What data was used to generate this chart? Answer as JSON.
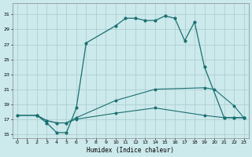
{
  "xlabel": "Humidex (Indice chaleur)",
  "bg_color": "#cce9ec",
  "grid_color": "#aecfd3",
  "line_color": "#1a7070",
  "xlim": [
    -0.5,
    23.5
  ],
  "ylim": [
    14.5,
    32.5
  ],
  "yticks": [
    15,
    17,
    19,
    21,
    23,
    25,
    27,
    29,
    31
  ],
  "xticks": [
    0,
    1,
    2,
    3,
    4,
    5,
    6,
    7,
    8,
    9,
    10,
    11,
    12,
    13,
    14,
    15,
    16,
    17,
    18,
    19,
    20,
    21,
    22,
    23
  ],
  "line1_x": [
    2,
    3,
    4,
    5,
    6,
    7,
    10,
    11,
    12,
    13,
    14,
    15,
    16,
    17,
    18,
    19,
    21,
    22,
    23
  ],
  "line1_y": [
    17.5,
    16.5,
    15.2,
    15.2,
    18.5,
    27.2,
    29.5,
    30.5,
    30.5,
    30.2,
    30.2,
    30.8,
    30.5,
    27.5,
    30.0,
    24.0,
    17.2,
    17.2,
    17.2
  ],
  "line2_x": [
    0,
    2,
    3,
    4,
    5,
    6,
    10,
    14,
    19,
    20,
    22,
    23
  ],
  "line2_y": [
    17.5,
    17.5,
    16.8,
    16.5,
    16.5,
    17.2,
    19.5,
    21.0,
    21.2,
    21.0,
    18.8,
    17.2
  ],
  "line3_x": [
    0,
    2,
    3,
    4,
    5,
    6,
    10,
    14,
    19,
    21,
    22,
    23
  ],
  "line3_y": [
    17.5,
    17.5,
    16.8,
    16.5,
    16.5,
    17.0,
    17.8,
    18.5,
    17.5,
    17.2,
    17.2,
    17.2
  ]
}
